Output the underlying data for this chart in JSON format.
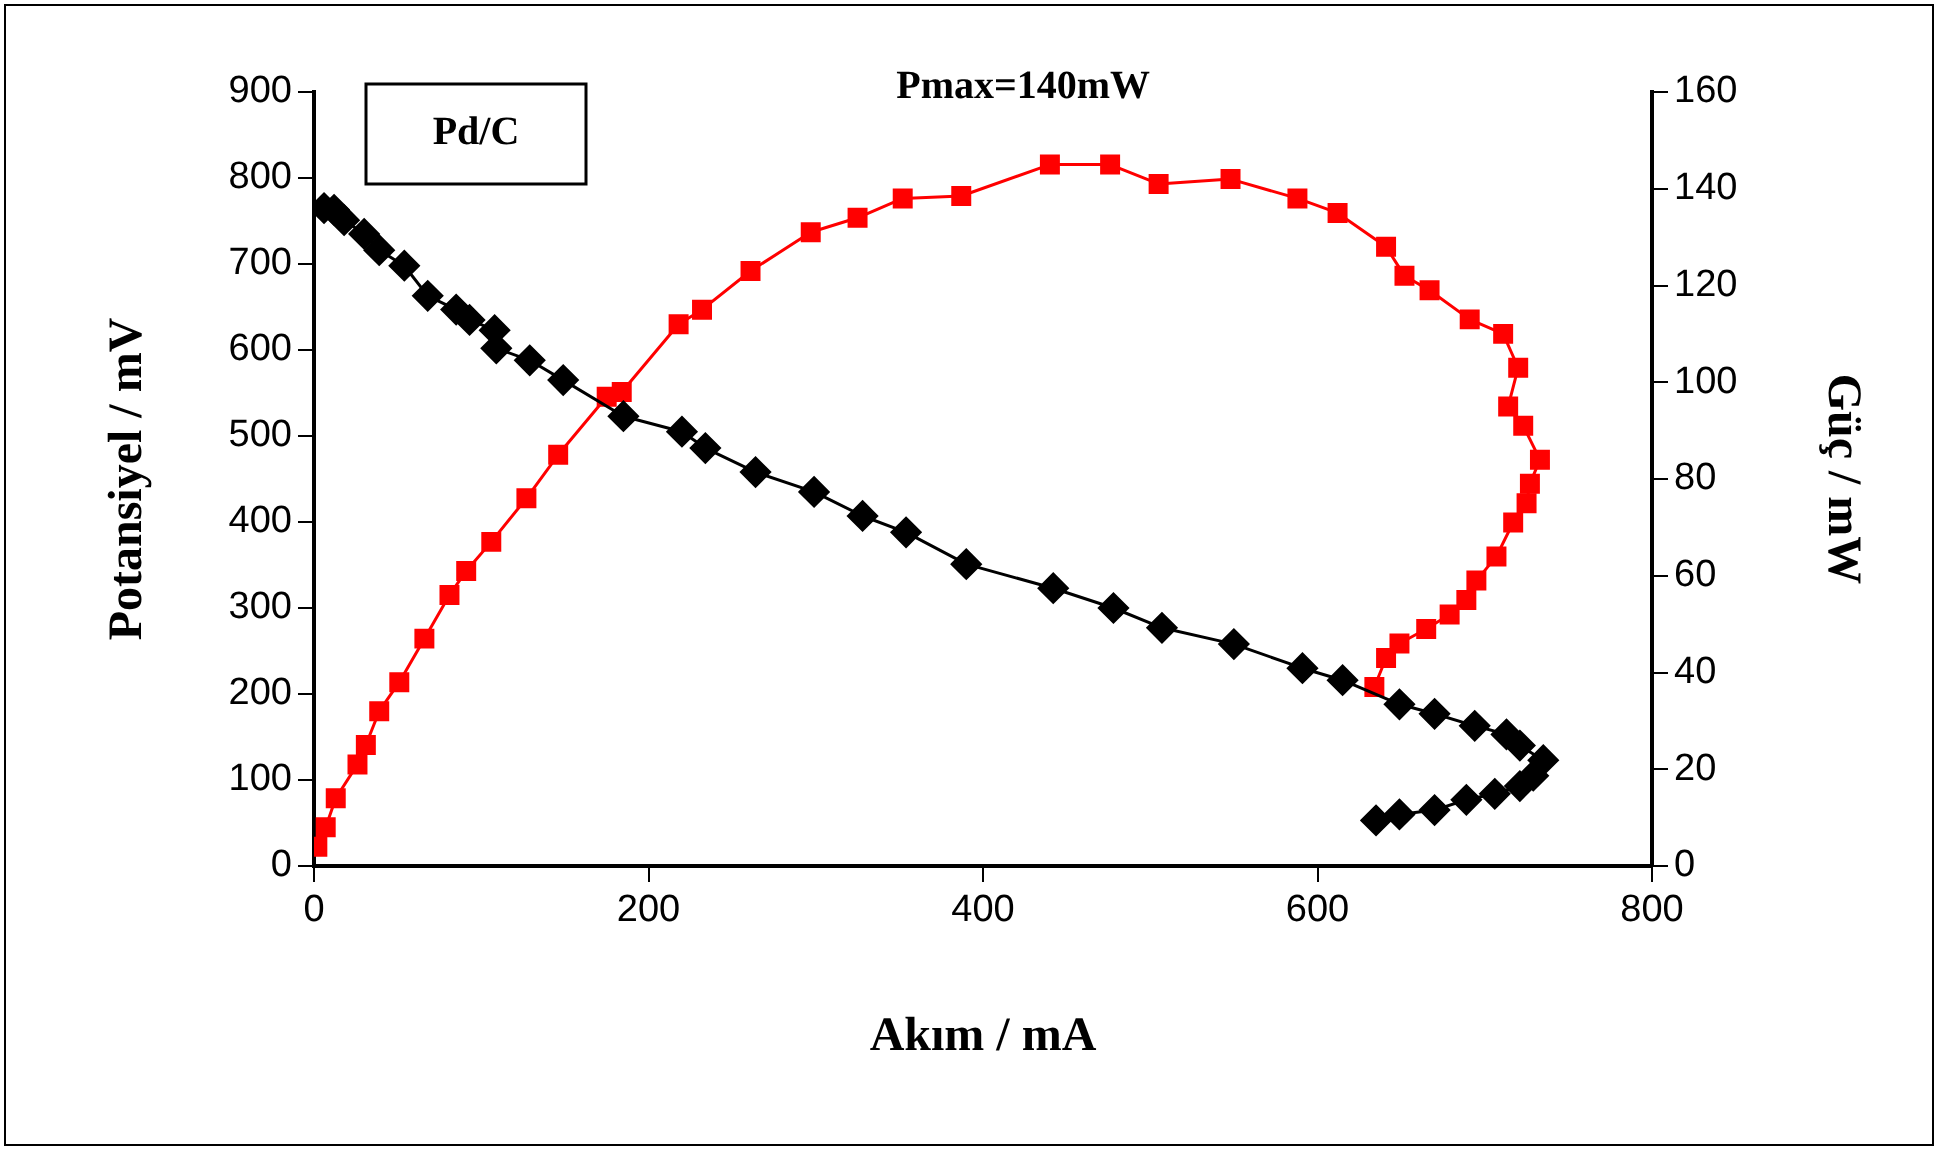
{
  "chart_data": {
    "type": "line",
    "xlabel": "Akım / mA",
    "ylabel": "Potansiyel / mV",
    "y2label": "Güç / mW",
    "annotations": [
      "Pd/C",
      "Pmax=140mW"
    ],
    "xlim": [
      0,
      800
    ],
    "xticks": [
      0,
      200,
      400,
      600,
      800
    ],
    "ylim": [
      0,
      900
    ],
    "yticks": [
      0,
      100,
      200,
      300,
      400,
      500,
      600,
      700,
      800,
      900
    ],
    "y2lim": [
      0,
      160
    ],
    "y2ticks": [
      0,
      20,
      40,
      60,
      80,
      100,
      120,
      140,
      160
    ],
    "grid": false,
    "legend": false,
    "series": [
      {
        "color": "#000000",
        "marker": "diamond",
        "x": [
          6,
          12,
          18,
          30,
          39,
          54,
          68,
          85,
          93,
          108,
          109,
          129,
          149,
          185,
          220,
          234,
          264,
          299,
          328,
          354,
          390,
          442,
          478,
          507,
          550,
          591,
          615,
          649,
          670,
          694,
          713,
          721,
          735,
          729,
          721,
          706,
          689,
          670,
          649,
          635
        ],
        "values": [
          765,
          763,
          751,
          735,
          716,
          698,
          663,
          647,
          635,
          623,
          602,
          588,
          565,
          523,
          505,
          486,
          458,
          435,
          407,
          388,
          351,
          323,
          300,
          277,
          258,
          230,
          216,
          188,
          177,
          163,
          153,
          140,
          123,
          105,
          93,
          84,
          77,
          65,
          60,
          53
        ]
      },
      {
        "color": "#ff0000",
        "marker": "square",
        "axis": "y2",
        "x": [
          2,
          7,
          13,
          26,
          31,
          39,
          51,
          66,
          81,
          91,
          106,
          127,
          146,
          175,
          184,
          218,
          232,
          261,
          297,
          325,
          352,
          387,
          440,
          476,
          505,
          548,
          588,
          612,
          641,
          652,
          667,
          691,
          711,
          720,
          714,
          723,
          733,
          727,
          725,
          717,
          707,
          695,
          689,
          679,
          665,
          649,
          641,
          634
        ],
        "values": [
          4,
          8,
          14,
          21,
          25,
          32,
          38,
          47,
          56,
          61,
          67,
          76,
          85,
          97,
          98,
          112,
          115,
          123,
          131,
          134,
          138,
          138.5,
          145,
          145,
          141,
          142,
          138,
          135,
          128,
          122,
          119,
          113,
          110,
          103,
          95,
          91,
          84,
          79,
          75,
          71,
          64,
          59,
          55,
          52,
          49,
          46,
          43,
          37
        ]
      }
    ]
  }
}
